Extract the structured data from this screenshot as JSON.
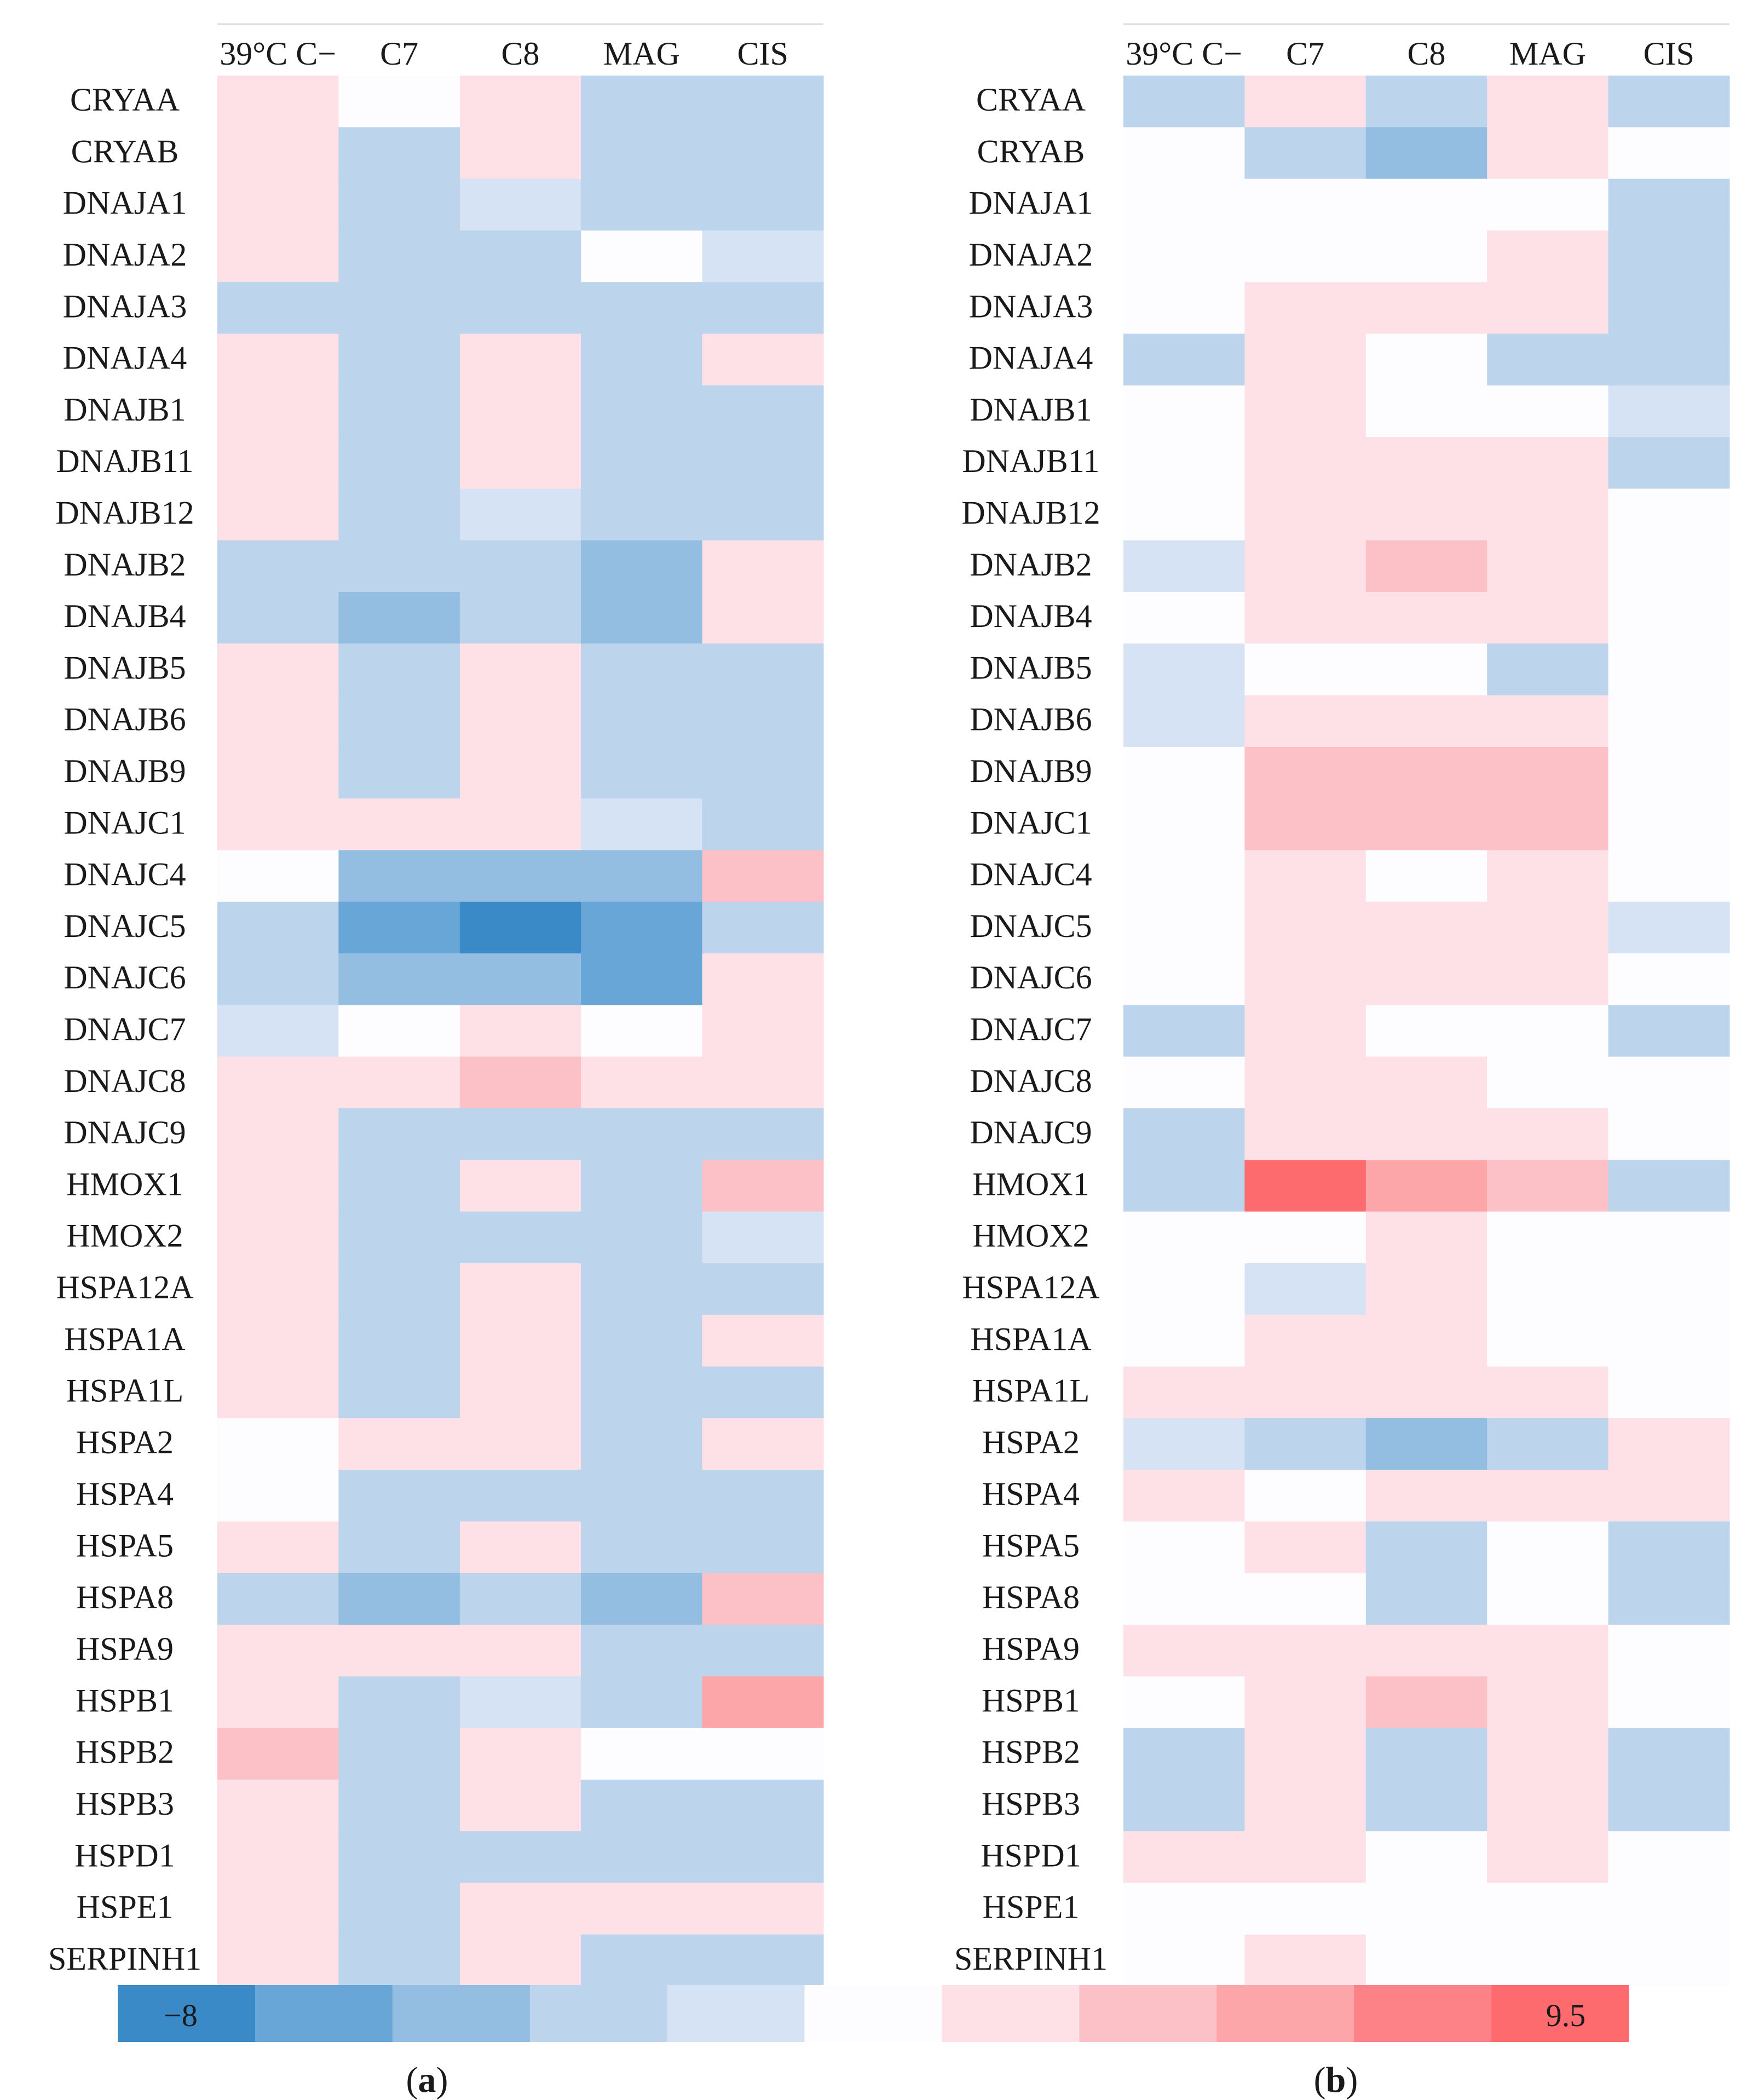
{
  "chart_data": [
    {
      "type": "heatmap",
      "panel_label": {
        "open": "(",
        "letter": "a",
        "close": ")"
      },
      "columns": [
        "39°C C−",
        "C7",
        "C8",
        "MAG",
        "CIS"
      ],
      "rows": [
        "CRYAA",
        "CRYAB",
        "DNAJA1",
        "DNAJA2",
        "DNAJA3",
        "DNAJA4",
        "DNAJB1",
        "DNAJB11",
        "DNAJB12",
        "DNAJB2",
        "DNAJB4",
        "DNAJB5",
        "DNAJB6",
        "DNAJB9",
        "DNAJC1",
        "DNAJC4",
        "DNAJC5",
        "DNAJC6",
        "DNAJC7",
        "DNAJC8",
        "DNAJC9",
        "HMOX1",
        "HMOX2",
        "HSPA12A",
        "HSPA1A",
        "HSPA1L",
        "HSPA2",
        "HSPA4",
        "HSPA5",
        "HSPA8",
        "HSPA9",
        "HSPB1",
        "HSPB2",
        "HSPB3",
        "HSPD1",
        "HSPE1",
        "SERPINH1"
      ],
      "values": [
        [
          1.0,
          0.0,
          0.5,
          -1.6,
          -1.6
        ],
        [
          1.0,
          -1.6,
          0.3,
          -1.6,
          -1.6
        ],
        [
          0.2,
          -1.6,
          -0.2,
          -2.0,
          -2.0
        ],
        [
          1.0,
          -1.6,
          -1.6,
          0.0,
          -0.2
        ],
        [
          -2.0,
          -2.2,
          -1.6,
          -2.2,
          -1.6
        ],
        [
          1.0,
          -1.6,
          0.5,
          -1.6,
          1.5
        ],
        [
          1.0,
          -1.6,
          0.5,
          -1.6,
          -2.4
        ],
        [
          1.0,
          -1.6,
          0.5,
          -1.6,
          -1.6
        ],
        [
          1.0,
          -1.6,
          -0.2,
          -1.6,
          -2.2
        ],
        [
          -2.0,
          -2.4,
          -2.4,
          -3.0,
          1.5
        ],
        [
          -2.0,
          -3.2,
          -2.4,
          -3.4,
          1.5
        ],
        [
          1.0,
          -1.6,
          0.5,
          -1.6,
          -2.4
        ],
        [
          1.0,
          -1.6,
          0.5,
          -1.6,
          -2.4
        ],
        [
          1.0,
          -1.6,
          0.5,
          -1.6,
          -2.4
        ],
        [
          0.8,
          0.5,
          1.5,
          -0.2,
          -1.6
        ],
        [
          0.0,
          -2.8,
          -3.4,
          -3.4,
          3.0
        ],
        [
          -2.2,
          -5.2,
          -7.2,
          -5.6,
          -2.0
        ],
        [
          -2.2,
          -4.4,
          -3.4,
          -5.2,
          0.4
        ],
        [
          -0.2,
          0.0,
          0.5,
          0.0,
          0.3
        ],
        [
          1.5,
          0.8,
          2.0,
          1.5,
          0.8
        ],
        [
          0.3,
          -2.4,
          -2.0,
          -2.0,
          -2.4
        ],
        [
          1.0,
          -1.6,
          0.5,
          -1.6,
          3.0
        ],
        [
          1.0,
          -2.0,
          -1.6,
          -1.6,
          -0.2
        ],
        [
          1.0,
          -1.6,
          0.5,
          -1.6,
          -2.4
        ],
        [
          1.0,
          -1.6,
          0.5,
          -1.6,
          0.8
        ],
        [
          1.0,
          -1.6,
          0.5,
          -1.6,
          -2.4
        ],
        [
          0.0,
          0.3,
          0.8,
          -1.6,
          0.5
        ],
        [
          0.0,
          -2.4,
          -1.6,
          -2.2,
          -2.2
        ],
        [
          1.3,
          -2.0,
          0.5,
          -2.0,
          -2.4
        ],
        [
          -2.2,
          -3.6,
          -2.6,
          -3.0,
          2.5
        ],
        [
          0.2,
          0.2,
          0.2,
          -2.0,
          -2.0
        ],
        [
          0.8,
          -2.4,
          -0.2,
          -2.4,
          5.0
        ],
        [
          2.0,
          -2.4,
          0.3,
          0.0,
          0.0
        ],
        [
          1.3,
          -2.0,
          0.5,
          -2.0,
          -2.4
        ],
        [
          0.2,
          -2.2,
          -2.0,
          -2.2,
          -2.4
        ],
        [
          1.0,
          -2.0,
          1.5,
          0.2,
          0.8
        ],
        [
          1.0,
          -1.6,
          0.5,
          -2.0,
          -2.4
        ]
      ]
    },
    {
      "type": "heatmap",
      "panel_label": {
        "open": "(",
        "letter": "b",
        "close": ")"
      },
      "columns": [
        "39°C C−",
        "C7",
        "C8",
        "MAG",
        "CIS"
      ],
      "rows": [
        "CRYAA",
        "CRYAB",
        "DNAJA1",
        "DNAJA2",
        "DNAJA3",
        "DNAJA4",
        "DNAJB1",
        "DNAJB11",
        "DNAJB12",
        "DNAJB2",
        "DNAJB4",
        "DNAJB5",
        "DNAJB6",
        "DNAJB9",
        "DNAJC1",
        "DNAJC4",
        "DNAJC5",
        "DNAJC6",
        "DNAJC7",
        "DNAJC8",
        "DNAJC9",
        "HMOX1",
        "HMOX2",
        "HSPA12A",
        "HSPA1A",
        "HSPA1L",
        "HSPA2",
        "HSPA4",
        "HSPA5",
        "HSPA8",
        "HSPA9",
        "HSPB1",
        "HSPB2",
        "HSPB3",
        "HSPD1",
        "HSPE1",
        "SERPINH1"
      ],
      "values": [
        [
          -1.6,
          0.2,
          -1.6,
          0.2,
          -1.6
        ],
        [
          -0.1,
          -2.4,
          -3.6,
          0.4,
          -0.1
        ],
        [
          -0.1,
          0.0,
          0.0,
          0.0,
          -1.6
        ],
        [
          -0.1,
          0.0,
          0.1,
          0.2,
          -1.6
        ],
        [
          -0.1,
          0.4,
          0.4,
          0.4,
          -1.6
        ],
        [
          -2.0,
          0.4,
          0.0,
          -1.6,
          -2.0
        ],
        [
          0.1,
          0.4,
          0.0,
          0.0,
          -0.2
        ],
        [
          0.1,
          0.4,
          0.8,
          0.6,
          -2.0
        ],
        [
          0.1,
          0.4,
          0.3,
          0.8,
          0.1
        ],
        [
          -0.2,
          1.6,
          2.4,
          0.4,
          -0.1
        ],
        [
          0.1,
          0.2,
          0.6,
          1.6,
          -0.1
        ],
        [
          -0.2,
          0.0,
          0.0,
          -2.4,
          -0.1
        ],
        [
          -0.2,
          1.2,
          1.2,
          0.8,
          -0.1
        ],
        [
          0.0,
          2.4,
          2.4,
          2.2,
          -0.1
        ],
        [
          -0.1,
          1.8,
          2.0,
          2.0,
          -0.1
        ],
        [
          -0.1,
          0.8,
          0.1,
          1.0,
          0.0
        ],
        [
          -0.1,
          0.6,
          0.6,
          0.6,
          -0.2
        ],
        [
          0.0,
          0.4,
          1.6,
          0.8,
          0.0
        ],
        [
          -1.6,
          0.2,
          0.0,
          0.1,
          -1.6
        ],
        [
          0.0,
          0.6,
          0.6,
          0.1,
          -0.1
        ],
        [
          -1.6,
          0.3,
          0.2,
          0.2,
          -0.1
        ],
        [
          -2.0,
          9.0,
          4.0,
          2.0,
          -2.0
        ],
        [
          0.1,
          0.1,
          0.2,
          0.1,
          0.1
        ],
        [
          0.1,
          -0.3,
          0.2,
          0.1,
          0.1
        ],
        [
          0.1,
          0.6,
          0.2,
          0.1,
          0.1
        ],
        [
          0.4,
          0.6,
          0.6,
          0.4,
          0.1
        ],
        [
          -0.2,
          -2.4,
          -3.0,
          -2.0,
          0.4
        ],
        [
          0.6,
          0.1,
          0.2,
          0.4,
          0.2
        ],
        [
          -0.1,
          0.6,
          -1.6,
          0.1,
          -1.6
        ],
        [
          0.0,
          0.1,
          -1.6,
          -0.1,
          -1.6
        ],
        [
          0.2,
          0.8,
          0.4,
          1.2,
          0.1
        ],
        [
          0.1,
          0.6,
          1.8,
          0.2,
          0.1
        ],
        [
          -1.6,
          0.2,
          -1.6,
          0.2,
          -1.6
        ],
        [
          -1.6,
          0.2,
          -1.6,
          0.2,
          -1.6
        ],
        [
          0.4,
          0.2,
          0.1,
          0.4,
          0.1
        ],
        [
          0.1,
          0.1,
          0.1,
          0.1,
          0.1
        ],
        [
          -0.1,
          0.3,
          0.1,
          0.1,
          0.0
        ]
      ]
    }
  ],
  "color_scale": {
    "min_label": "−8",
    "max_label": "9.5",
    "min": -8,
    "max": 9.5,
    "bins": [
      {
        "upper": -6.25,
        "color": "#3a8ac8"
      },
      {
        "upper": -4.5,
        "color": "#67a6d6"
      },
      {
        "upper": -2.75,
        "color": "#94bde2"
      },
      {
        "upper": -1.0,
        "color": "#bcd4ec"
      },
      {
        "upper": -0.15,
        "color": "#d6e3f4"
      },
      {
        "upper": 0.15,
        "color": "#fdfdff"
      },
      {
        "upper": 1.75,
        "color": "#fde1e6"
      },
      {
        "upper": 3.5,
        "color": "#fcc1c6"
      },
      {
        "upper": 5.25,
        "color": "#fca6aa"
      },
      {
        "upper": 7.0,
        "color": "#fd8287"
      },
      {
        "upper": 9.5,
        "color": "#fe6b6f"
      }
    ]
  }
}
